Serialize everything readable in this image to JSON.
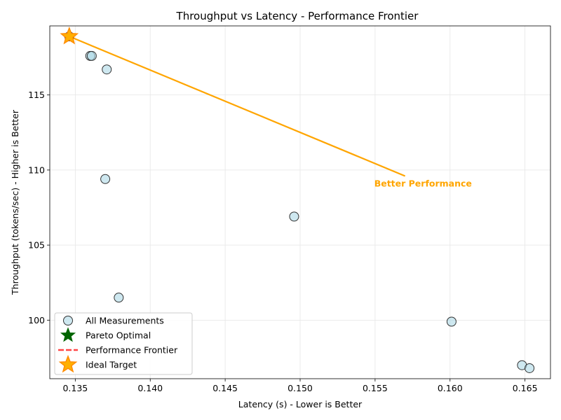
{
  "chart_data": {
    "type": "scatter",
    "title": "Throughput vs Latency - Performance Frontier",
    "xlabel": "Latency (s) - Lower is Better",
    "ylabel": "Throughput (tokens/sec) - Higher is Better",
    "xlim": [
      0.1333,
      0.1667
    ],
    "ylim": [
      96.1,
      119.6
    ],
    "x_ticks": [
      0.135,
      0.14,
      0.145,
      0.15,
      0.155,
      0.16,
      0.165
    ],
    "x_tick_labels": [
      "0.135",
      "0.140",
      "0.145",
      "0.150",
      "0.155",
      "0.160",
      "0.165"
    ],
    "y_ticks": [
      100,
      105,
      110,
      115
    ],
    "y_tick_labels": [
      "100",
      "105",
      "110",
      "115"
    ],
    "grid": true,
    "legend_position": "lower-left",
    "series": [
      {
        "name": "All Measurements",
        "kind": "scatter",
        "color": "#add8e6",
        "edge_color": "#333333",
        "points": [
          {
            "x": 0.1346,
            "y": 118.9
          },
          {
            "x": 0.136,
            "y": 117.6
          },
          {
            "x": 0.1361,
            "y": 117.6
          },
          {
            "x": 0.1371,
            "y": 116.7
          },
          {
            "x": 0.137,
            "y": 109.4
          },
          {
            "x": 0.1379,
            "y": 101.5
          },
          {
            "x": 0.1496,
            "y": 106.9
          },
          {
            "x": 0.1601,
            "y": 99.9
          },
          {
            "x": 0.1648,
            "y": 97.0
          },
          {
            "x": 0.1653,
            "y": 96.8
          }
        ]
      },
      {
        "name": "Pareto Optimal",
        "kind": "star",
        "color": "#006400",
        "points": []
      },
      {
        "name": "Performance Frontier",
        "kind": "dashed-line",
        "color": "#ff4444",
        "points": []
      },
      {
        "name": "Ideal Target",
        "kind": "star",
        "color": "#ffb000",
        "edge_color": "#ff8c00",
        "points": [
          {
            "x": 0.1346,
            "y": 118.9
          }
        ]
      }
    ],
    "arrow": {
      "from": {
        "x": 0.157,
        "y": 109.6
      },
      "to": {
        "x": 0.1346,
        "y": 118.9
      },
      "color": "#ffa500"
    },
    "annotation": {
      "text": "Better Performance",
      "x": 0.1582,
      "y": 108.9,
      "color": "#ffa500"
    }
  }
}
